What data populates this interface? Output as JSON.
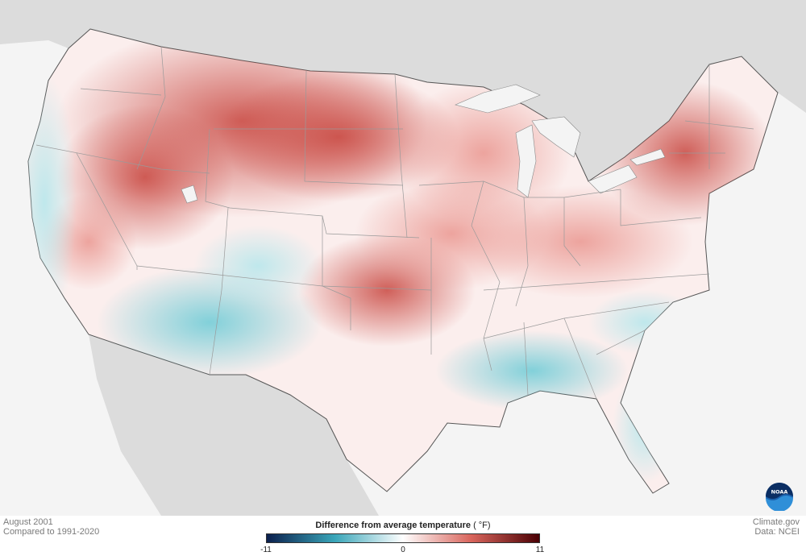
{
  "map": {
    "period": "August 2001",
    "baseline": "Compared to 1991-2020",
    "credit_site": "Climate.gov",
    "credit_data": "Data: NCEI"
  },
  "legend": {
    "title": "Difference from average temperature",
    "unit": "( °F)",
    "min_label": "-11",
    "mid_label": "0",
    "max_label": "11",
    "min_value": -11,
    "max_value": 11,
    "colors": {
      "cold_extreme": "#0b1f4d",
      "cold_mid": "#3aa6b9",
      "neutral": "#ffffff",
      "warm_mid": "#d9655c",
      "warm_extreme": "#4a0004"
    }
  },
  "logo": {
    "text": "NOAA"
  },
  "colors": {
    "land_outside": "#dcdcdc",
    "water": "#f4f4f4",
    "border_line": "#6a6a6a"
  }
}
